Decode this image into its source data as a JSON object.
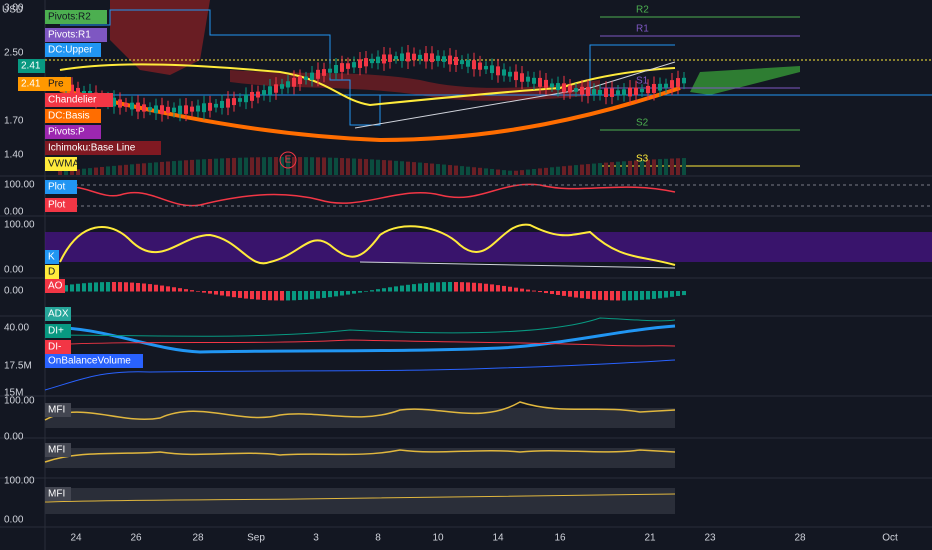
{
  "axis_unit": "USD",
  "price_labels": [
    "3.00",
    "2.50",
    "1.70",
    "1.40"
  ],
  "price_badges": [
    {
      "label": "2.41",
      "color": "#089981"
    },
    {
      "label": "2.41",
      "color": "#ff9800"
    }
  ],
  "legend": [
    {
      "label": "Pivots:R2",
      "color": "#4caf50"
    },
    {
      "label": "Pivots:R1",
      "color": "#7e57c2"
    },
    {
      "label": "DC:Upper",
      "color": "#2196f3"
    },
    {
      "label": "Pre",
      "color": "#ff9800"
    },
    {
      "label": "Chandelier",
      "color": "#f23645"
    },
    {
      "label": "DC:Basis",
      "color": "#ff6d00"
    },
    {
      "label": "Pivots:P",
      "color": "#9c27b0"
    },
    {
      "label": "Ichimoku:Base Line",
      "color": "#801922"
    },
    {
      "label": "VWMA",
      "color": "#ffeb3b"
    }
  ],
  "pivots": [
    "R2",
    "R1",
    "S1",
    "S2",
    "S3"
  ],
  "event": "E",
  "panes": [
    {
      "labels": [
        "100.00",
        "0.00"
      ],
      "legend": [
        {
          "label": "Plot",
          "color": "#2196f3"
        },
        {
          "label": "Plot",
          "color": "#f23645"
        }
      ]
    },
    {
      "labels": [
        "100.00",
        "0.00"
      ],
      "legend": [
        {
          "label": "K",
          "color": "#2196f3"
        },
        {
          "label": "D",
          "color": "#ffeb3b"
        }
      ]
    },
    {
      "labels": [
        "0.00"
      ],
      "legend": [
        {
          "label": "AO",
          "color": "#f23645"
        }
      ]
    },
    {
      "labels": [
        "40.00",
        "17.5M",
        "15M"
      ],
      "legend": [
        {
          "label": "ADX",
          "color": "#26a69a"
        },
        {
          "label": "DI+",
          "color": "#089981"
        },
        {
          "label": "DI-",
          "color": "#f23645"
        },
        {
          "label": "OnBalanceVolume",
          "color": "#2962ff"
        }
      ]
    },
    {
      "labels": [
        "100.00",
        "0.00"
      ],
      "legend": [
        {
          "label": "MFI",
          "color": "#434651"
        }
      ]
    },
    {
      "labels": [],
      "legend": [
        {
          "label": "MFI",
          "color": "#434651"
        }
      ]
    },
    {
      "labels": [
        "100.00",
        "0.00"
      ],
      "legend": [
        {
          "label": "MFI",
          "color": "#434651"
        }
      ]
    }
  ],
  "x_labels": [
    "24",
    "26",
    "28",
    "Sep",
    "3",
    "8",
    "10",
    "14",
    "16",
    "21",
    "23",
    "28",
    "Oct"
  ]
}
